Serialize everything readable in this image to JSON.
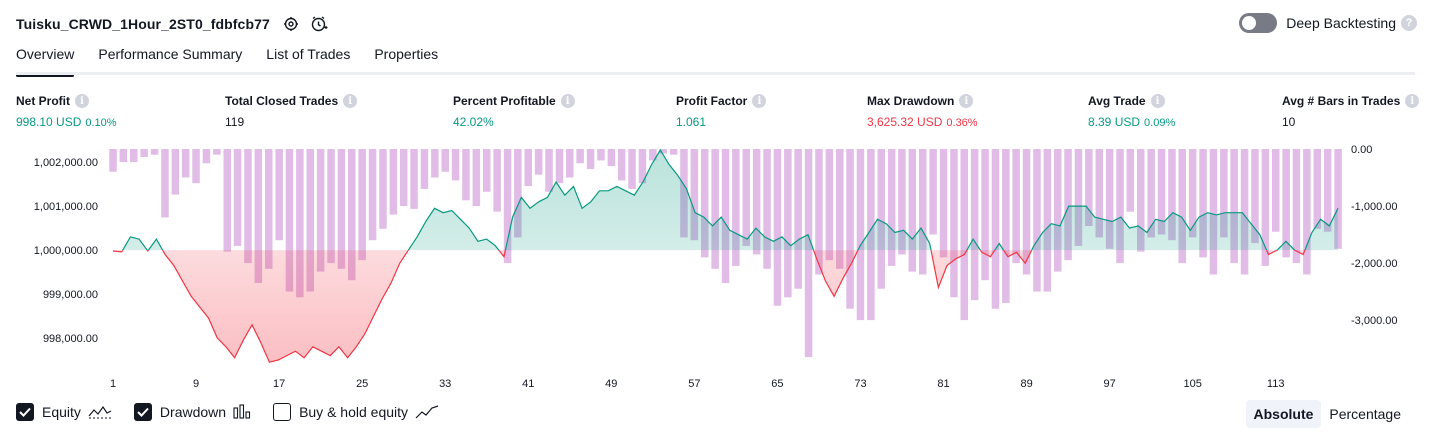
{
  "header": {
    "title": "Tuisku_CRWD_1Hour_2ST0_fdbfcb77",
    "deep_backtesting": "Deep Backtesting"
  },
  "tabs": [
    "Overview",
    "Performance Summary",
    "List of Trades",
    "Properties"
  ],
  "metrics": [
    {
      "label": "Net Profit",
      "value": "998.10 USD",
      "pct": "0.10%",
      "color": "green"
    },
    {
      "label": "Total Closed Trades",
      "value": "119",
      "pct": "",
      "color": "dark"
    },
    {
      "label": "Percent Profitable",
      "value": "42.02%",
      "pct": "",
      "color": "green"
    },
    {
      "label": "Profit Factor",
      "value": "1.061",
      "pct": "",
      "color": "green"
    },
    {
      "label": "Max Drawdown",
      "value": "3,625.32 USD",
      "pct": "0.36%",
      "color": "red"
    },
    {
      "label": "Avg Trade",
      "value": "8.39 USD",
      "pct": "0.09%",
      "color": "green"
    },
    {
      "label": "Avg # Bars in Trades",
      "value": "10",
      "pct": "",
      "color": "dark"
    }
  ],
  "legend": {
    "equity": "Equity",
    "drawdown": "Drawdown",
    "buy_hold": "Buy & hold equity",
    "equity_checked": true,
    "drawdown_checked": true,
    "buy_hold_checked": false
  },
  "scale_toggle": {
    "absolute": "Absolute",
    "percentage": "Percentage",
    "selected": "Absolute"
  },
  "colors": {
    "profit_line": "#089981",
    "loss_line": "#f23645",
    "profit_fill": "#089981",
    "loss_fill": "#f23645",
    "drawdown_bar": "#ce93d8"
  },
  "chart_data": {
    "type": "area",
    "baseline": 1000000,
    "x_ticks": [
      1,
      9,
      17,
      25,
      33,
      41,
      49,
      57,
      65,
      73,
      81,
      89,
      97,
      105,
      113
    ],
    "left_axis_ticks": [
      {
        "value": 1002000,
        "label": "1,002,000.00"
      },
      {
        "value": 1001000,
        "label": "1,001,000.00"
      },
      {
        "value": 1000000,
        "label": "1,000,000.00"
      },
      {
        "value": 999000,
        "label": "999,000.00"
      },
      {
        "value": 998000,
        "label": "998,000.00"
      }
    ],
    "right_axis_ticks": [
      {
        "value": 0,
        "label": "0.00"
      },
      {
        "value": -1000,
        "label": "-1,000.00"
      },
      {
        "value": -2000,
        "label": "-2,000.00"
      },
      {
        "value": -3000,
        "label": "-3,000.00"
      }
    ],
    "ylim_equity": [
      997500,
      1002300
    ],
    "ylim_drawdown": [
      -3700,
      0
    ],
    "series": [
      {
        "name": "Equity",
        "values": [
          999980,
          999960,
          1000300,
          1000250,
          999980,
          1000250,
          999900,
          999650,
          999300,
          998950,
          998700,
          998450,
          998000,
          997800,
          997550,
          997950,
          998300,
          997900,
          997450,
          997500,
          997600,
          997700,
          997550,
          997800,
          997700,
          997600,
          997800,
          997550,
          997800,
          998100,
          998500,
          998900,
          999250,
          999700,
          1000000,
          1000300,
          1000650,
          1000950,
          1000850,
          1000900,
          1000700,
          1000500,
          1000200,
          1000250,
          1000100,
          999850,
          1000750,
          1001200,
          1000950,
          1001100,
          1001200,
          1001550,
          1001250,
          1001450,
          1000950,
          1001100,
          1001350,
          1001350,
          1001450,
          1001350,
          1001250,
          1001550,
          1001950,
          1002280,
          1001950,
          1001700,
          1001400,
          1000850,
          1000750,
          1000550,
          1000750,
          1000450,
          1000350,
          1000250,
          1000500,
          1000300,
          1000200,
          1000300,
          1000100,
          1000250,
          1000350,
          999800,
          999300,
          998950,
          999350,
          999700,
          1000100,
          1000400,
          1000700,
          1000600,
          1000400,
          1000450,
          1000250,
          1000500,
          1000150,
          999150,
          999650,
          999800,
          999900,
          1000250,
          999950,
          999850,
          1000150,
          999850,
          999950,
          999700,
          1000100,
          1000400,
          1000600,
          1000550,
          1001000,
          1001000,
          1001000,
          1000750,
          1000700,
          1000650,
          1000750,
          1000500,
          1000550,
          1000400,
          1000700,
          1000650,
          1000850,
          1000750,
          1000450,
          1000750,
          1000850,
          1000800,
          1000850,
          1000850,
          1000850,
          1000600,
          1000350,
          999900,
          1000000,
          1000200,
          1000000,
          999900,
          1000400,
          1000700,
          1000550,
          1000950
        ],
        "draw_x_from": 1,
        "draw_x_to": 119
      },
      {
        "name": "Drawdown",
        "values": [
          -400,
          -230,
          -230,
          -140,
          -100,
          -1200,
          -800,
          -500,
          -600,
          -250,
          -100,
          -1800,
          -1700,
          -2000,
          -2350,
          -2100,
          -1600,
          -2500,
          -2600,
          -2500,
          -2150,
          -2000,
          -2100,
          -2300,
          -1950,
          -1600,
          -1400,
          -1150,
          -1000,
          -1050,
          -700,
          -500,
          -400,
          -550,
          -900,
          -1000,
          -750,
          -1100,
          -2000,
          -1550,
          -650,
          -450,
          -750,
          -600,
          -500,
          -250,
          -350,
          -200,
          -300,
          -550,
          -700,
          -600,
          -200,
          -80,
          -100,
          -1550,
          -1600,
          -1900,
          -2100,
          -2350,
          -2050,
          -1700,
          -1850,
          -2100,
          -2750,
          -2600,
          -2450,
          -3650,
          -2200,
          -1950,
          -2100,
          -2800,
          -3000,
          -3000,
          -2450,
          -2050,
          -1850,
          -2150,
          -2200,
          -1500,
          -1900,
          -2600,
          -3000,
          -2650,
          -2300,
          -2800,
          -2700,
          -2000,
          -2200,
          -2500,
          -2500,
          -2150,
          -1950,
          -1700,
          -1350,
          -1550,
          -1750,
          -2000,
          -1100,
          -1800,
          -1550,
          -1500,
          -1600,
          -2000,
          -1550,
          -1900,
          -2200,
          -1550,
          -2000,
          -2200,
          -1650,
          -2050,
          -1450,
          -1900,
          -2000,
          -2200,
          -1400,
          -1450,
          -1750
        ],
        "draw_x_from": 1,
        "draw_x_to": 119
      }
    ]
  }
}
